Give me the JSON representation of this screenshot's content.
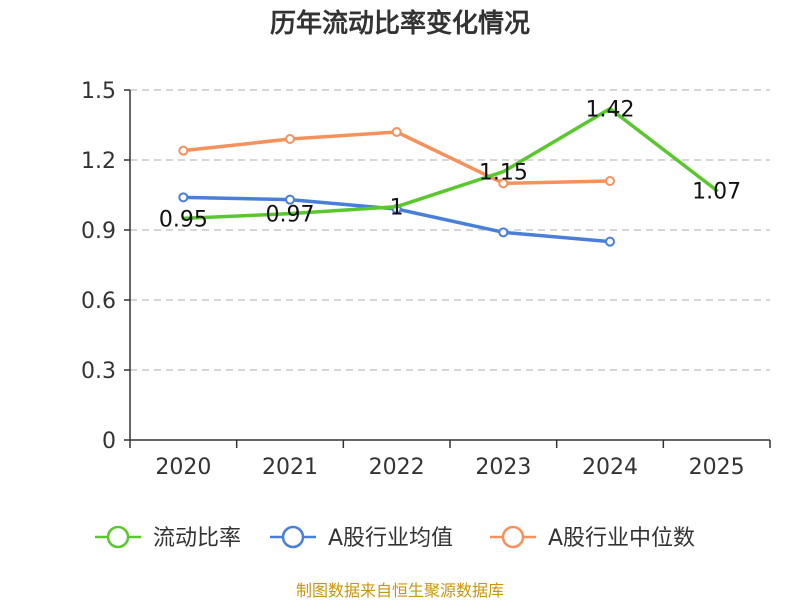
{
  "chart_data": {
    "type": "line",
    "title": "历年流动比率变化情况",
    "categories": [
      "2020",
      "2021",
      "2022",
      "2023",
      "2024",
      "2025"
    ],
    "ylim": [
      0,
      1.5
    ],
    "yticks": [
      "0",
      "0.3",
      "0.6",
      "0.9",
      "1.2",
      "1.5"
    ],
    "ytick_values": [
      0,
      0.3,
      0.6,
      0.9,
      1.2,
      1.5
    ],
    "grid": "horizontal dashed",
    "legend_position": "bottom",
    "series": [
      {
        "name": "流动比率",
        "color": "#5ac72f",
        "values": [
          0.95,
          0.97,
          1.0,
          1.15,
          1.42,
          1.07
        ],
        "labels": [
          "0.95",
          "0.97",
          "1",
          "1.15",
          "1.42",
          "1.07"
        ],
        "show_markers": false
      },
      {
        "name": "A股行业均值",
        "color": "#4a7fd8",
        "values": [
          1.04,
          1.03,
          0.99,
          0.89,
          0.85,
          null
        ],
        "show_markers": true
      },
      {
        "name": "A股行业中位数",
        "color": "#f5915b",
        "values": [
          1.24,
          1.29,
          1.32,
          1.1,
          1.11,
          null
        ],
        "show_markers": true
      }
    ]
  },
  "source_text": "制图数据来自恒生聚源数据库"
}
